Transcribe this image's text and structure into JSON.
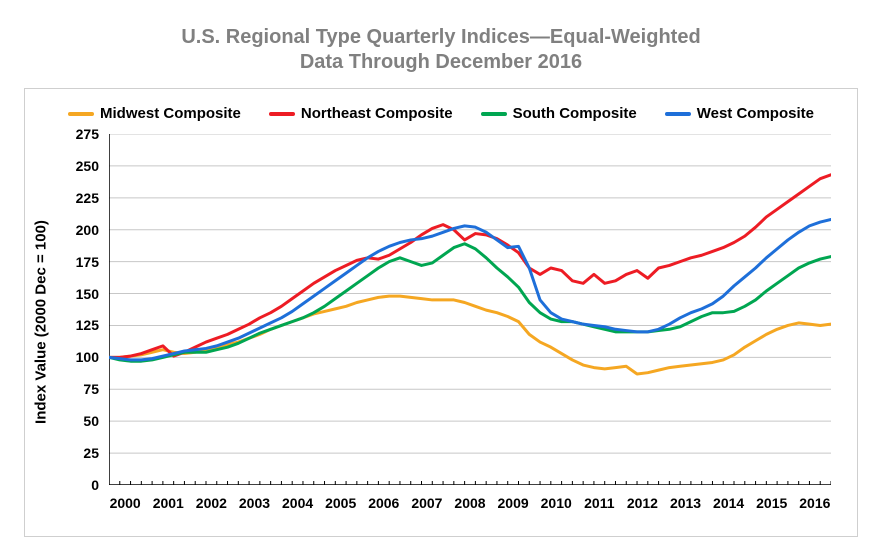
{
  "title": {
    "line1": "U.S. Regional Type Quarterly Indices—Equal-Weighted",
    "line2": "Data Through December 2016",
    "color": "#808080",
    "fontsize": 20
  },
  "chart": {
    "type": "line",
    "background_color": "#ffffff",
    "border_color": "#cfcfcf",
    "grid_color": "#c7c7c7",
    "axis_color": "#000000",
    "line_width": 3,
    "ylabel": "Index Value (2000 Dec = 100)",
    "ylabel_fontsize": 15,
    "ylim": [
      0,
      275
    ],
    "ytick_step": 25,
    "yticks": [
      0,
      25,
      50,
      75,
      100,
      125,
      150,
      175,
      200,
      225,
      250,
      275
    ],
    "x_start_year": 2000,
    "x_end_year": 2016,
    "points_per_year": 4,
    "num_points": 68,
    "xtick_labels": [
      "2000",
      "2001",
      "2002",
      "2003",
      "2004",
      "2005",
      "2006",
      "2007",
      "2008",
      "2009",
      "2010",
      "2011",
      "2012",
      "2013",
      "2014",
      "2015",
      "2016"
    ],
    "tick_fontsize": 14,
    "legend_fontsize": 15,
    "series": [
      {
        "name": "Midwest Composite",
        "color": "#f5a722",
        "values": [
          100,
          100,
          101,
          102,
          104,
          106,
          104,
          103,
          104,
          106,
          108,
          110,
          112,
          115,
          118,
          122,
          125,
          128,
          131,
          134,
          136,
          138,
          140,
          143,
          145,
          147,
          148,
          148,
          147,
          146,
          145,
          145,
          145,
          143,
          140,
          137,
          135,
          132,
          128,
          118,
          112,
          108,
          103,
          98,
          94,
          92,
          91,
          92,
          93,
          87,
          88,
          90,
          92,
          93,
          94,
          95,
          96,
          98,
          102,
          108,
          113,
          118,
          122,
          125,
          127,
          126,
          125,
          126
        ]
      },
      {
        "name": "Northeast Composite",
        "color": "#ed1c24",
        "values": [
          100,
          100,
          101,
          103,
          106,
          109,
          101,
          104,
          108,
          112,
          115,
          118,
          122,
          126,
          131,
          135,
          140,
          146,
          152,
          158,
          163,
          168,
          172,
          176,
          178,
          177,
          180,
          185,
          190,
          196,
          201,
          204,
          200,
          192,
          197,
          196,
          193,
          188,
          182,
          170,
          165,
          170,
          168,
          160,
          158,
          165,
          158,
          160,
          165,
          168,
          162,
          170,
          172,
          175,
          178,
          180,
          183,
          186,
          190,
          195,
          202,
          210,
          216,
          222,
          228,
          234,
          240,
          243
        ]
      },
      {
        "name": "South Composite",
        "color": "#00a651",
        "values": [
          100,
          98,
          97,
          97,
          98,
          100,
          102,
          104,
          104,
          104,
          106,
          108,
          111,
          115,
          119,
          122,
          125,
          128,
          131,
          135,
          140,
          146,
          152,
          158,
          164,
          170,
          175,
          178,
          175,
          172,
          174,
          180,
          186,
          189,
          185,
          178,
          170,
          163,
          155,
          143,
          135,
          130,
          128,
          128,
          126,
          124,
          122,
          120,
          120,
          120,
          120,
          121,
          122,
          124,
          128,
          132,
          135,
          135,
          136,
          140,
          145,
          152,
          158,
          164,
          170,
          174,
          177,
          179
        ]
      },
      {
        "name": "West Composite",
        "color": "#1e6fd9",
        "values": [
          100,
          99,
          98,
          98,
          99,
          101,
          103,
          105,
          106,
          107,
          109,
          112,
          115,
          119,
          123,
          127,
          131,
          136,
          142,
          148,
          154,
          160,
          166,
          172,
          178,
          183,
          187,
          190,
          192,
          193,
          195,
          198,
          201,
          203,
          202,
          198,
          192,
          186,
          187,
          170,
          145,
          135,
          130,
          128,
          126,
          125,
          124,
          122,
          121,
          120,
          120,
          122,
          126,
          131,
          135,
          138,
          142,
          148,
          156,
          163,
          170,
          178,
          185,
          192,
          198,
          203,
          206,
          208
        ]
      }
    ]
  }
}
